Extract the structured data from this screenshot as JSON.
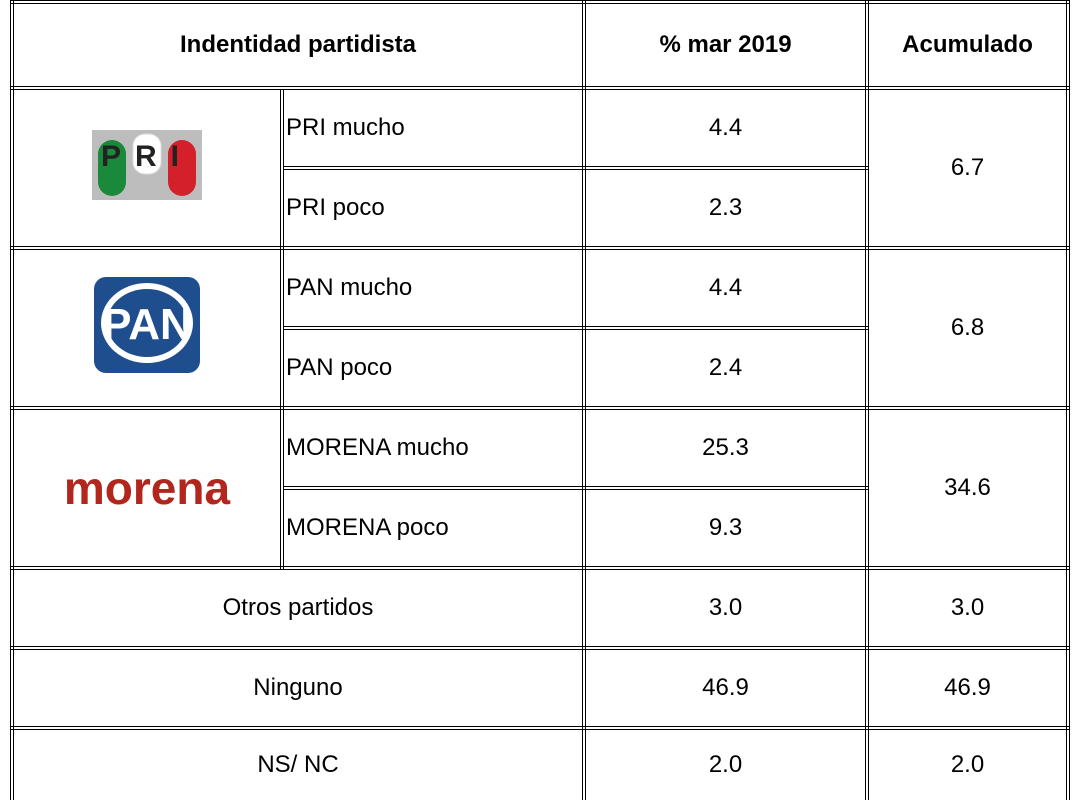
{
  "header": [
    "Indentidad partidista",
    "% mar 2019",
    "Acumulado"
  ],
  "parties": [
    {
      "logo": "PRI",
      "rows": [
        {
          "label": "PRI mucho",
          "value": "4.4"
        },
        {
          "label": "PRI poco",
          "value": "2.3"
        }
      ],
      "total": "6.7"
    },
    {
      "logo": "PAN",
      "rows": [
        {
          "label": "PAN mucho",
          "value": "4.4"
        },
        {
          "label": "PAN poco",
          "value": "2.4"
        }
      ],
      "total": "6.8"
    },
    {
      "logo": "morena",
      "rows": [
        {
          "label": "MORENA mucho",
          "value": "25.3"
        },
        {
          "label": "MORENA poco",
          "value": "9.3"
        }
      ],
      "total": "34.6"
    }
  ],
  "others": [
    {
      "label": "Otros partidos",
      "value": "3.0",
      "total": "3.0"
    },
    {
      "label": "Ninguno",
      "value": "46.9",
      "total": "46.9"
    },
    {
      "label": "NS/ NC",
      "value": "2.0",
      "total": "2.0"
    }
  ]
}
